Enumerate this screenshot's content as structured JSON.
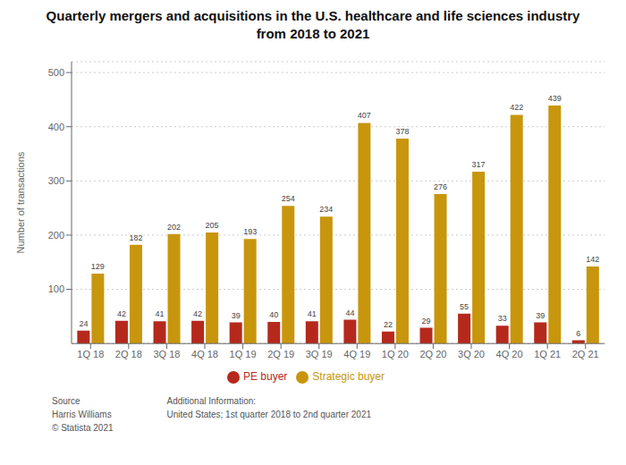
{
  "chart_data": {
    "type": "bar",
    "title": "Quarterly mergers and acquisitions in the U.S. healthcare and life sciences industry\nfrom 2018 to 2021",
    "categories": [
      "1Q 18",
      "2Q 18",
      "3Q 18",
      "4Q 18",
      "1Q 19",
      "2Q 19",
      "3Q 19",
      "4Q 19",
      "1Q 20",
      "2Q 20",
      "3Q 20",
      "4Q 20",
      "1Q 21",
      "2Q 21"
    ],
    "series": [
      {
        "name": "PE buyer",
        "color": "#b5291c",
        "values": [
          24,
          42,
          41,
          42,
          39,
          40,
          41,
          44,
          22,
          29,
          55,
          33,
          39,
          6
        ]
      },
      {
        "name": "Strategic buyer",
        "color": "#c8960c",
        "values": [
          129,
          182,
          202,
          205,
          193,
          254,
          234,
          407,
          378,
          276,
          317,
          422,
          439,
          142
        ]
      }
    ],
    "ylabel": "Number of transactions",
    "ylim": [
      0,
      520
    ],
    "yticks": [
      100,
      200,
      300,
      400,
      500
    ],
    "grid": true,
    "legend": "bottom",
    "data_labels": true,
    "annotations": [
      "Source\nHarris Williams\n© Statista 2021",
      "Additional Information:\nUnited States; 1st quarter 2018 to 2nd quarter 2021"
    ]
  }
}
